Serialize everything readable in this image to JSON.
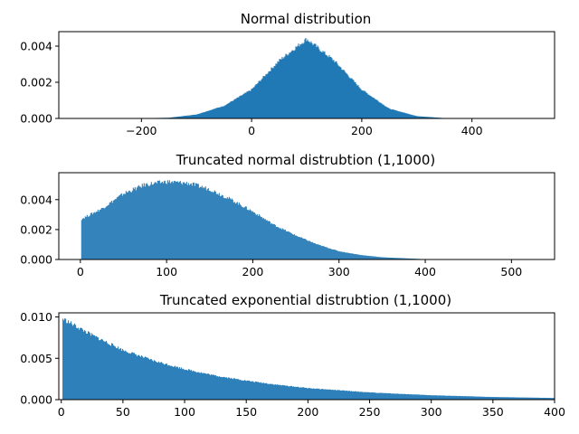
{
  "chart_data": [
    {
      "type": "bar",
      "title": "Normal distribution",
      "xlabel": "",
      "ylabel": "",
      "xlim": [
        -350,
        550
      ],
      "ylim": [
        0,
        0.0048
      ],
      "xticks": [
        -200,
        0,
        200,
        400
      ],
      "xtick_labels": [
        "−200",
        "0",
        "200",
        "400"
      ],
      "yticks": [
        0,
        0.002,
        0.004
      ],
      "ytick_labels": [
        "0.000",
        "0.002",
        "0.004"
      ],
      "x": [
        -300,
        -250,
        -200,
        -150,
        -100,
        -50,
        0,
        50,
        100,
        150,
        200,
        250,
        300,
        350,
        400,
        450,
        500
      ],
      "values": [
        1e-06,
        2e-06,
        1.1e-05,
        4e-05,
        0.00022,
        0.0007,
        0.0016,
        0.0032,
        0.0044,
        0.0032,
        0.0016,
        0.00054,
        0.00013,
        2e-05,
        1e-06,
        0.0,
        0.0
      ],
      "color": "#1f77b4"
    },
    {
      "type": "bar",
      "title": "Truncated normal distrubtion (1,1000)",
      "xlabel": "",
      "ylabel": "",
      "xlim": [
        -25,
        550
      ],
      "ylim": [
        0,
        0.0058
      ],
      "xticks": [
        0,
        100,
        200,
        300,
        400,
        500
      ],
      "xtick_labels": [
        "0",
        "100",
        "200",
        "300",
        "400",
        "500"
      ],
      "yticks": [
        0,
        0.002,
        0.004
      ],
      "ytick_labels": [
        "0.000",
        "0.002",
        "0.004"
      ],
      "x": [
        1,
        25,
        50,
        75,
        100,
        125,
        150,
        175,
        200,
        225,
        250,
        275,
        300,
        325,
        350,
        400,
        450,
        500
      ],
      "values": [
        0.0027,
        0.0034,
        0.0044,
        0.005,
        0.0052,
        0.0051,
        0.0047,
        0.004,
        0.0032,
        0.0023,
        0.0016,
        0.001,
        0.00055,
        0.0003,
        0.00015,
        2e-05,
        0.0,
        0.0
      ],
      "color": "#1f77b4"
    },
    {
      "type": "bar",
      "title": "Truncated exponential distrubtion (1,1000)",
      "xlabel": "",
      "ylabel": "",
      "xlim": [
        -2,
        400
      ],
      "ylim": [
        0,
        0.0105
      ],
      "xticks": [
        0,
        50,
        100,
        150,
        200,
        250,
        300,
        350,
        400
      ],
      "xtick_labels": [
        "0",
        "50",
        "100",
        "150",
        "200",
        "250",
        "300",
        "350",
        "400"
      ],
      "yticks": [
        0,
        0.005,
        0.01
      ],
      "ytick_labels": [
        "0.000",
        "0.005",
        "0.010"
      ],
      "x": [
        1,
        25,
        50,
        75,
        100,
        125,
        150,
        175,
        200,
        250,
        300,
        350,
        400
      ],
      "values": [
        0.0098,
        0.0078,
        0.006,
        0.0047,
        0.0037,
        0.0029,
        0.0023,
        0.0018,
        0.0014,
        0.00087,
        0.00053,
        0.00032,
        0.0002
      ],
      "color": "#1f77b4"
    }
  ]
}
